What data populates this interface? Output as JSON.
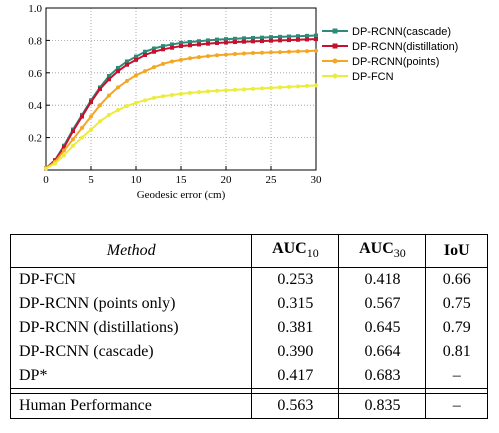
{
  "chart_data": {
    "type": "line",
    "title": "",
    "xlabel": "Geodesic error (cm)",
    "ylabel": "",
    "xlim": [
      0,
      30
    ],
    "ylim": [
      0,
      1.0
    ],
    "xticks": [
      "0",
      "5",
      "10",
      "15",
      "20",
      "25",
      "30"
    ],
    "yticks": [
      "0.2",
      "0.4",
      "0.6",
      "0.8",
      "1.0"
    ],
    "grid": true,
    "legend_position": "right",
    "x": [
      0,
      1,
      2,
      3,
      4,
      5,
      6,
      7,
      8,
      9,
      10,
      11,
      12,
      13,
      14,
      15,
      16,
      17,
      18,
      19,
      20,
      21,
      22,
      23,
      24,
      25,
      26,
      27,
      28,
      29,
      30
    ],
    "series": [
      {
        "name": "DP-RCNN(cascade)",
        "color": "#2e8b7a",
        "marker": "square",
        "values": [
          0.01,
          0.06,
          0.15,
          0.25,
          0.34,
          0.43,
          0.51,
          0.58,
          0.63,
          0.67,
          0.7,
          0.73,
          0.75,
          0.765,
          0.775,
          0.785,
          0.79,
          0.795,
          0.8,
          0.805,
          0.808,
          0.81,
          0.813,
          0.815,
          0.817,
          0.82,
          0.822,
          0.824,
          0.826,
          0.828,
          0.83
        ]
      },
      {
        "name": "DP-RCNN(distillation)",
        "color": "#c8102e",
        "marker": "square",
        "values": [
          0.01,
          0.06,
          0.14,
          0.24,
          0.33,
          0.42,
          0.5,
          0.56,
          0.61,
          0.65,
          0.68,
          0.71,
          0.73,
          0.745,
          0.755,
          0.765,
          0.77,
          0.775,
          0.78,
          0.784,
          0.787,
          0.79,
          0.792,
          0.794,
          0.796,
          0.798,
          0.8,
          0.802,
          0.804,
          0.806,
          0.808
        ]
      },
      {
        "name": "DP-RCNN(points)",
        "color": "#f5a623",
        "marker": "circle",
        "values": [
          0.01,
          0.05,
          0.12,
          0.19,
          0.26,
          0.33,
          0.4,
          0.46,
          0.51,
          0.55,
          0.585,
          0.61,
          0.635,
          0.655,
          0.67,
          0.68,
          0.69,
          0.697,
          0.703,
          0.708,
          0.712,
          0.716,
          0.719,
          0.722,
          0.724,
          0.726,
          0.728,
          0.73,
          0.732,
          0.734,
          0.736
        ]
      },
      {
        "name": "DP-FCN",
        "color": "#ecec3c",
        "marker": "circle",
        "values": [
          0.01,
          0.04,
          0.09,
          0.15,
          0.2,
          0.25,
          0.3,
          0.34,
          0.37,
          0.395,
          0.415,
          0.43,
          0.445,
          0.455,
          0.463,
          0.47,
          0.476,
          0.481,
          0.485,
          0.489,
          0.492,
          0.495,
          0.498,
          0.501,
          0.504,
          0.507,
          0.51,
          0.513,
          0.516,
          0.519,
          0.522
        ]
      }
    ]
  },
  "table": {
    "headers": {
      "method": "Method",
      "auc10_main": "AUC",
      "auc10_sub": "10",
      "auc30_main": "AUC",
      "auc30_sub": "30",
      "iou": "IoU"
    },
    "rows": [
      {
        "method": "DP-FCN",
        "auc10": "0.253",
        "auc30": "0.418",
        "iou": "0.66"
      },
      {
        "method": "DP-RCNN (points only)",
        "auc10": "0.315",
        "auc30": "0.567",
        "iou": "0.75"
      },
      {
        "method": "DP-RCNN (distillations)",
        "auc10": "0.381",
        "auc30": "0.645",
        "iou": "0.79"
      },
      {
        "method": "DP-RCNN (cascade)",
        "auc10": "0.390",
        "auc30": "0.664",
        "iou": "0.81"
      },
      {
        "method": "DP*",
        "auc10": "0.417",
        "auc30": "0.683",
        "iou": "–"
      }
    ],
    "human_row": {
      "method": "Human Performance",
      "auc10": "0.563",
      "auc30": "0.835",
      "iou": "–"
    }
  }
}
